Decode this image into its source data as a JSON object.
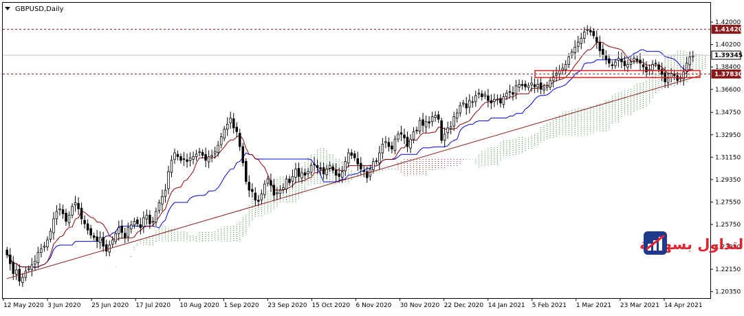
{
  "chart_title": "GBPUSD,Daily",
  "brand_text": "التداول بسهولة",
  "brand_logo_icon": "bar-chart-logo-icon",
  "colors": {
    "kijun": "#0000dd",
    "tenkan": "#8b0000",
    "cloud_bull": "#1e7a1e",
    "cloud_bear": "#8b1a1a",
    "trendline": "#8b1a1a",
    "resistance": "#8b1a1a",
    "support_box": "#e31b1b",
    "brand": "#e0232e",
    "candle": "#000000"
  },
  "chart_data": {
    "type": "candlestick",
    "symbol": "GBPUSD",
    "timeframe": "Daily",
    "ylim": [
      1.2,
      1.43
    ],
    "grid": false,
    "price_ticks": [
      "1.42000",
      "1.40200",
      "1.38400",
      "1.36600",
      "1.34750",
      "1.32950",
      "1.31150",
      "1.29350",
      "1.27550",
      "1.25750",
      "1.23950",
      "1.22150",
      "1.20350"
    ],
    "date_ticks": [
      "12 May 2020",
      "3 Jun 2020",
      "25 Jun 2020",
      "17 Jul 2020",
      "10 Aug 2020",
      "1 Sep 2020",
      "23 Sep 2020",
      "15 Oct 2020",
      "6 Nov 2020",
      "30 Nov 2020",
      "22 Dec 2020",
      "14 Jan 2021",
      "5 Feb 2021",
      "1 Mar 2021",
      "23 Mar 2021",
      "14 Apr 2021"
    ],
    "price_labels": [
      {
        "value": "1.41420",
        "kind": "resistance"
      },
      {
        "value": "1.39345",
        "kind": "current"
      },
      {
        "value": "1.37830",
        "kind": "support"
      }
    ],
    "close": [
      1.233,
      1.226,
      1.218,
      1.221,
      1.212,
      1.215,
      1.22,
      1.222,
      1.225,
      1.228,
      1.235,
      1.238,
      1.24,
      1.245,
      1.252,
      1.262,
      1.268,
      1.27,
      1.266,
      1.26,
      1.265,
      1.272,
      1.275,
      1.27,
      1.262,
      1.258,
      1.253,
      1.249,
      1.247,
      1.244,
      1.247,
      1.24,
      1.236,
      1.241,
      1.245,
      1.25,
      1.255,
      1.251,
      1.247,
      1.255,
      1.257,
      1.26,
      1.258,
      1.255,
      1.263,
      1.265,
      1.258,
      1.26,
      1.268,
      1.275,
      1.28,
      1.285,
      1.3,
      1.309,
      1.315,
      1.312,
      1.309,
      1.31,
      1.308,
      1.311,
      1.312,
      1.314,
      1.316,
      1.313,
      1.309,
      1.312,
      1.313,
      1.316,
      1.321,
      1.328,
      1.334,
      1.338,
      1.343,
      1.335,
      1.332,
      1.32,
      1.307,
      1.292,
      1.285,
      1.284,
      1.277,
      1.276,
      1.282,
      1.29,
      1.294,
      1.289,
      1.281,
      1.283,
      1.285,
      1.287,
      1.294,
      1.291,
      1.296,
      1.302,
      1.296,
      1.299,
      1.297,
      1.3,
      1.305,
      1.306,
      1.303,
      1.302,
      1.298,
      1.302,
      1.305,
      1.301,
      1.297,
      1.296,
      1.3,
      1.308,
      1.315,
      1.313,
      1.311,
      1.306,
      1.302,
      1.3,
      1.295,
      1.302,
      1.308,
      1.308,
      1.315,
      1.322,
      1.324,
      1.32,
      1.318,
      1.326,
      1.33,
      1.33,
      1.327,
      1.32,
      1.326,
      1.332,
      1.333,
      1.341,
      1.337,
      1.34,
      1.339,
      1.344,
      1.345,
      1.342,
      1.325,
      1.33,
      1.335,
      1.336,
      1.344,
      1.347,
      1.353,
      1.355,
      1.351,
      1.357,
      1.356,
      1.361,
      1.363,
      1.36,
      1.362,
      1.357,
      1.355,
      1.358,
      1.358,
      1.355,
      1.36,
      1.363,
      1.364,
      1.362,
      1.369,
      1.37,
      1.369,
      1.368,
      1.369,
      1.371,
      1.368,
      1.37,
      1.366,
      1.367,
      1.369,
      1.373,
      1.376,
      1.379,
      1.381,
      1.383,
      1.386,
      1.392,
      1.396,
      1.4,
      1.404,
      1.407,
      1.412,
      1.414,
      1.412,
      1.409,
      1.404,
      1.397,
      1.394,
      1.39,
      1.387,
      1.385,
      1.388,
      1.391,
      1.388,
      1.385,
      1.386,
      1.388,
      1.391,
      1.389,
      1.387,
      1.384,
      1.38,
      1.382,
      1.386,
      1.387,
      1.382,
      1.378,
      1.372,
      1.375,
      1.379,
      1.377,
      1.373,
      1.375,
      1.38,
      1.387,
      1.392,
      1.393
    ]
  }
}
